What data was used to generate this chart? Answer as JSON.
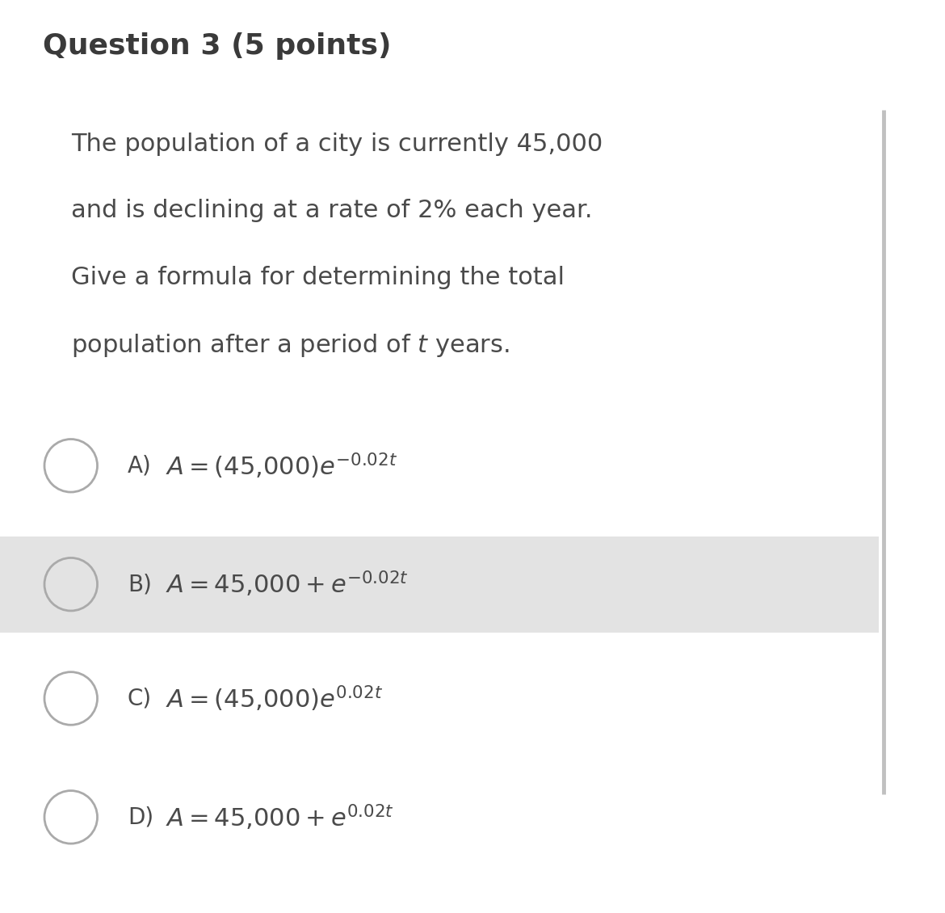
{
  "background_color": "#ffffff",
  "title": "Question 3 (5 points)",
  "question_lines": [
    "The population of a city is currently 45,000",
    "and is declining at a rate of 2% each year.",
    "Give a formula for determining the total",
    "population after a period of $t$ years."
  ],
  "options": [
    {
      "label": "A)",
      "formula": "$A = (45{,}000)e^{-0.02t}$",
      "highlight": false
    },
    {
      "label": "B)",
      "formula": "$A = 45{,}000 + e^{-0.02t}$",
      "highlight": true
    },
    {
      "label": "C)",
      "formula": "$A = (45{,}000)e^{0.02t}$",
      "highlight": false
    },
    {
      "label": "D)",
      "formula": "$A = 45{,}000 + e^{0.02t}$",
      "highlight": false
    }
  ],
  "highlight_color": "#e3e3e3",
  "text_color": "#4a4a4a",
  "title_color": "#3a3a3a",
  "question_color": "#4a4a4a",
  "circle_edge_color": "#aaaaaa",
  "divider_color": "#c0c0c0",
  "title_fontsize": 26,
  "question_fontsize": 22,
  "option_label_fontsize": 20,
  "formula_fontsize": 22
}
